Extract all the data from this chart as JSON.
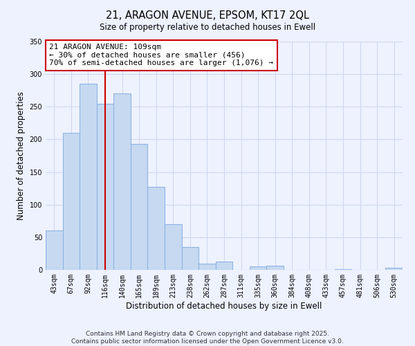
{
  "title": "21, ARAGON AVENUE, EPSOM, KT17 2QL",
  "subtitle": "Size of property relative to detached houses in Ewell",
  "xlabel": "Distribution of detached houses by size in Ewell",
  "ylabel": "Number of detached properties",
  "bar_labels": [
    "43sqm",
    "67sqm",
    "92sqm",
    "116sqm",
    "140sqm",
    "165sqm",
    "189sqm",
    "213sqm",
    "238sqm",
    "262sqm",
    "287sqm",
    "311sqm",
    "335sqm",
    "360sqm",
    "384sqm",
    "408sqm",
    "433sqm",
    "457sqm",
    "481sqm",
    "506sqm",
    "530sqm"
  ],
  "bar_values": [
    60,
    210,
    285,
    255,
    270,
    193,
    127,
    70,
    35,
    10,
    13,
    0,
    5,
    6,
    0,
    0,
    0,
    1,
    0,
    0,
    3
  ],
  "bar_color": "#c6d9f1",
  "bar_edge_color": "#8eb4e3",
  "vline_x": 3,
  "vline_color": "#cc0000",
  "annotation_line1": "21 ARAGON AVENUE: 109sqm",
  "annotation_line2": "← 30% of detached houses are smaller (456)",
  "annotation_line3": "70% of semi-detached houses are larger (1,076) →",
  "ylim": [
    0,
    350
  ],
  "yticks": [
    0,
    50,
    100,
    150,
    200,
    250,
    300,
    350
  ],
  "footer_line1": "Contains HM Land Registry data © Crown copyright and database right 2025.",
  "footer_line2": "Contains public sector information licensed under the Open Government Licence v3.0.",
  "bg_color": "#eef2ff",
  "plot_bg_color": "#eef2ff",
  "title_fontsize": 10.5,
  "axis_label_fontsize": 8.5,
  "tick_fontsize": 7,
  "annotation_fontsize": 8,
  "footer_fontsize": 6.5,
  "grid_color": "#d0d8ef"
}
